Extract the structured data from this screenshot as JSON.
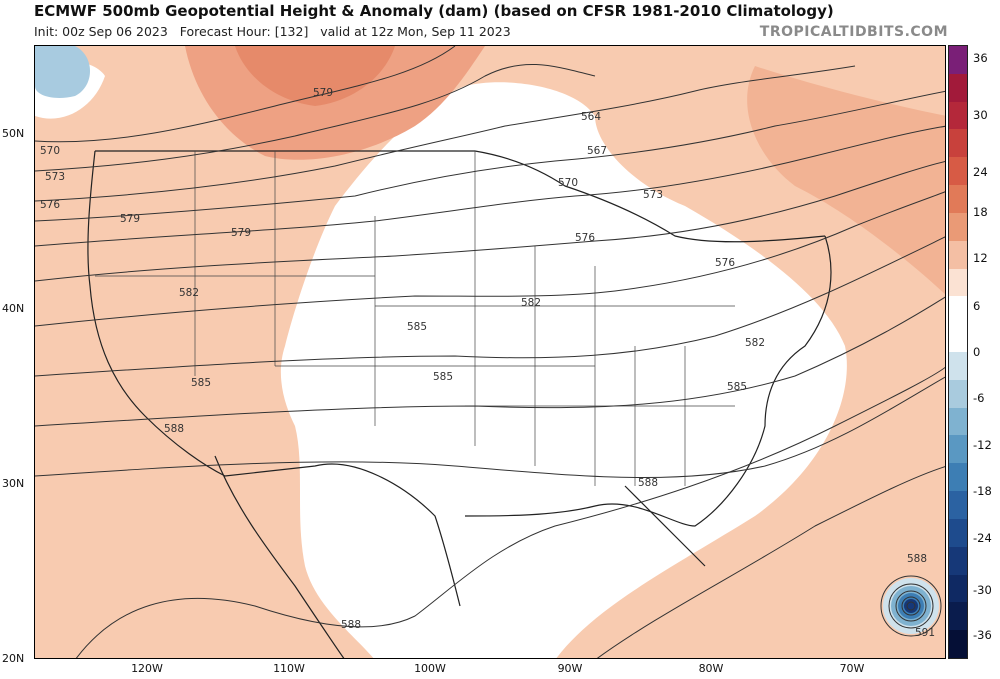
{
  "header": {
    "title": "ECMWF 500mb Geopotential Height & Anomaly (dam) (based on CFSR 1981-2010 Climatology)",
    "init": "Init: 00z Sep 06 2023",
    "forecast_hour": "Forecast Hour: [132]",
    "valid": "valid at 12z Mon, Sep 11 2023",
    "brand": "TROPICALTIDBITS.COM"
  },
  "axes": {
    "lat_labels": [
      "50N",
      "40N",
      "30N",
      "20N"
    ],
    "lon_labels": [
      "120W",
      "110W",
      "100W",
      "90W",
      "80W",
      "70W"
    ]
  },
  "contour_labels": [
    "579",
    "564",
    "567",
    "570",
    "570",
    "573",
    "573",
    "576",
    "576",
    "576",
    "579",
    "579",
    "582",
    "582",
    "582",
    "585",
    "585",
    "585",
    "585",
    "588",
    "588",
    "588",
    "588",
    "591",
    "591",
    "582"
  ],
  "colorbar": {
    "labels": [
      "36",
      "30",
      "24",
      "18",
      "12",
      "6",
      "0",
      "-6",
      "-12",
      "-18",
      "-24",
      "-30",
      "-36"
    ],
    "colors": [
      "#7a1f77",
      "#a21a3a",
      "#b4283a",
      "#c8413c",
      "#d75b45",
      "#e17a58",
      "#ea9a76",
      "#f4bfa4",
      "#fbe2d3",
      "#ffffff",
      "#ffffff",
      "#cfe2ec",
      "#a9cbde",
      "#7fb2d0",
      "#5a98c2",
      "#3d7eb4",
      "#2b62a2",
      "#1e4b8d",
      "#163878",
      "#0f2963",
      "#0a1c4d",
      "#050f36"
    ]
  }
}
